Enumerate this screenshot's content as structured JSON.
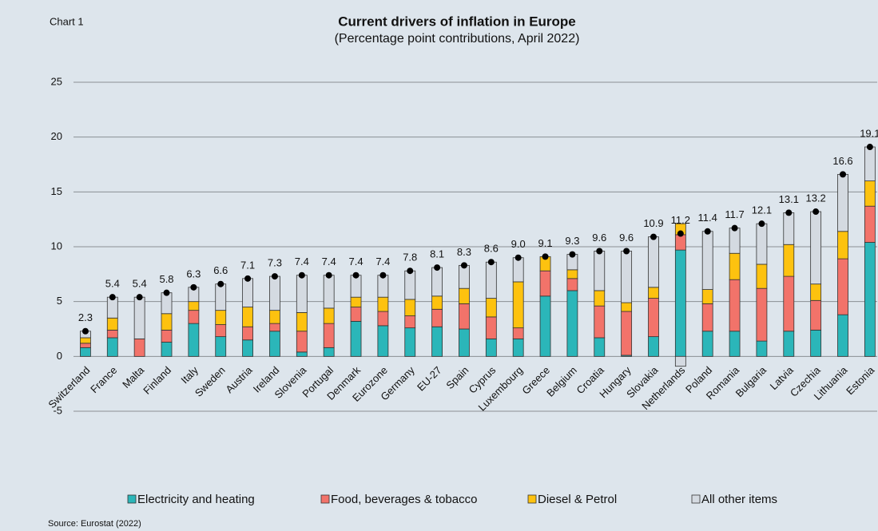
{
  "chart_data": {
    "type": "stacked-bar",
    "label": "Chart 1",
    "title": "Current drivers of inflation in Europe",
    "subtitle": "(Percentage point contributions, April 2022)",
    "source": "Source: Eurostat (2022)",
    "categories": [
      "Switzerland",
      "France",
      "Malta",
      "Finland",
      "Italy",
      "Sweden",
      "Austria",
      "Ireland",
      "Slovenia",
      "Portugal",
      "Denmark",
      "Eurozone",
      "Germany",
      "EU-27",
      "Spain",
      "Cyprus",
      "Luxembourg",
      "Greece",
      "Belgium",
      "Croatia",
      "Hungary",
      "Slovakia",
      "Netherlands",
      "Poland",
      "Romania",
      "Bulgaria",
      "Latvia",
      "Czechia",
      "Lithuania",
      "Estonia"
    ],
    "series": [
      {
        "name": "Electricity and heating",
        "color": "#2bb6b9",
        "values": [
          0.8,
          1.7,
          0,
          1.3,
          3.0,
          1.8,
          1.5,
          2.3,
          0.4,
          0.8,
          3.2,
          2.8,
          2.6,
          2.7,
          2.5,
          1.6,
          1.6,
          5.5,
          6.0,
          1.7,
          0.1,
          1.8,
          9.7,
          2.3,
          2.3,
          1.4,
          2.3,
          2.4,
          3.8,
          10.4
        ]
      },
      {
        "name": "Food, beverages & tobacco",
        "color": "#f2736a",
        "values": [
          0.4,
          0.7,
          1.6,
          1.1,
          1.2,
          1.1,
          1.2,
          0.7,
          1.9,
          2.2,
          1.3,
          1.3,
          1.1,
          1.6,
          2.3,
          2.0,
          1.0,
          2.3,
          1.1,
          2.9,
          4.0,
          3.5,
          1.4,
          2.5,
          4.7,
          4.8,
          5.0,
          2.7,
          5.1,
          3.3
        ]
      },
      {
        "name": "Diesel & Petrol",
        "color": "#fdc20f",
        "values": [
          0.5,
          1.1,
          0,
          1.5,
          0.8,
          1.3,
          1.8,
          1.2,
          1.7,
          1.4,
          0.9,
          1.3,
          1.5,
          1.2,
          1.4,
          1.7,
          4.2,
          1.3,
          0.8,
          1.4,
          0.8,
          1.0,
          1.0,
          1.3,
          2.4,
          2.2,
          2.9,
          1.5,
          2.5,
          2.3
        ]
      },
      {
        "name": "All other items",
        "color": "#d4dae1",
        "values": [
          0.6,
          1.9,
          3.8,
          1.9,
          1.3,
          2.4,
          2.6,
          3.1,
          3.4,
          3.0,
          2.0,
          2.0,
          2.6,
          2.6,
          2.1,
          3.3,
          2.2,
          0,
          1.4,
          3.6,
          4.7,
          4.6,
          -0.9,
          5.3,
          2.3,
          3.7,
          2.9,
          6.6,
          5.2,
          3.1
        ]
      }
    ],
    "totals": {
      "values": [
        2.3,
        5.4,
        5.4,
        5.8,
        6.3,
        6.6,
        7.1,
        7.3,
        7.4,
        7.4,
        7.4,
        7.4,
        7.8,
        8.1,
        8.3,
        8.6,
        9.0,
        9.1,
        9.3,
        9.6,
        9.6,
        10.9,
        11.2,
        11.4,
        11.7,
        12.1,
        13.1,
        13.2,
        16.6,
        19.1
      ],
      "value_labels": [
        "2.3",
        "5.4",
        "5.4",
        "5.8",
        "6.3",
        "6.6",
        "7.1",
        "7.3",
        "7.4",
        "7.4",
        "7.4",
        "7.4",
        "7.8",
        "8.1",
        "8.3",
        "8.6",
        "9.0",
        "9.1",
        "9.3",
        "9.6",
        "9.6",
        "10.9",
        "11.2",
        "11.4",
        "11.7",
        "12.1",
        "13.1",
        "13.2",
        "16.6",
        "19.1"
      ],
      "color": "#000000"
    },
    "ylim": [
      -5,
      25
    ],
    "yticks": [
      -5,
      0,
      5,
      10,
      15,
      20,
      25
    ],
    "grid": true,
    "legend": "bottom"
  }
}
